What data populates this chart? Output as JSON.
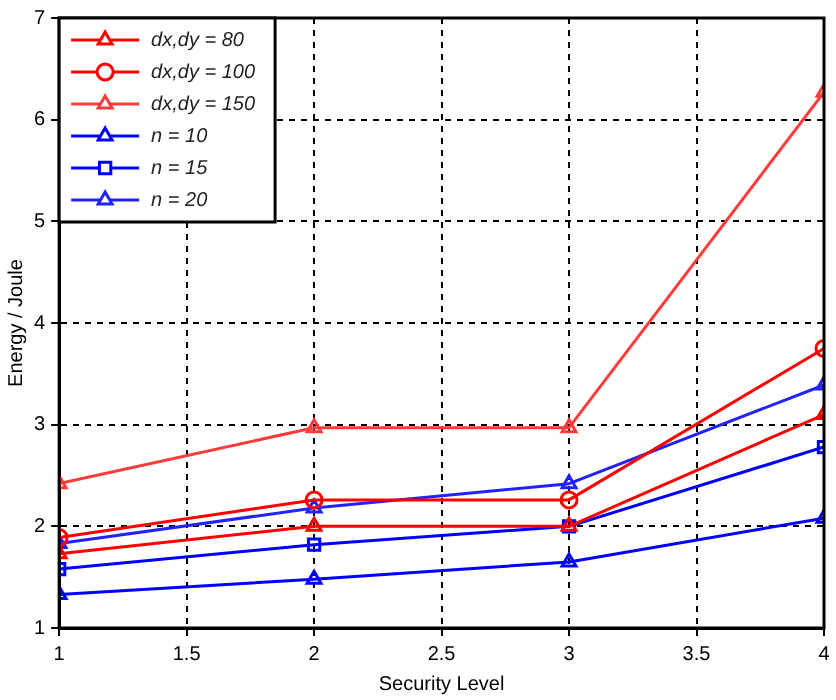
{
  "chart_data": {
    "type": "line",
    "xlabel": "Security Level",
    "ylabel": "Energy / Joule",
    "x": [
      1,
      2,
      3,
      4
    ],
    "xlim": [
      1,
      4
    ],
    "xticks": [
      1,
      1.5,
      2,
      2.5,
      3,
      3.5,
      4
    ],
    "ylim": [
      1,
      7
    ],
    "yticks": [
      1,
      2,
      3,
      4,
      5,
      6,
      7
    ],
    "grid": true,
    "legend": "top left",
    "line_style": "solid",
    "series": [
      {
        "name": "dx,dy = 80",
        "color": "#ff0000",
        "marker": "triangle",
        "values": [
          1.73,
          2.0,
          2.0,
          3.1
        ]
      },
      {
        "name": "dx,dy = 100",
        "color": "#ff0000",
        "marker": "circle",
        "values": [
          1.89,
          2.26,
          2.26,
          3.75
        ]
      },
      {
        "name": "dx,dy = 150",
        "color": "#ff3b3b",
        "marker": "triangle",
        "values": [
          2.42,
          2.97,
          2.97,
          6.27
        ]
      },
      {
        "name": "n = 10",
        "color": "#0000ff",
        "marker": "triangle",
        "values": [
          1.33,
          1.48,
          1.65,
          2.08
        ]
      },
      {
        "name": "n = 15",
        "color": "#0000ff",
        "marker": "square",
        "values": [
          1.58,
          1.82,
          2.0,
          2.78
        ]
      },
      {
        "name": "n = 20",
        "color": "#2222ff",
        "marker": "triangle",
        "values": [
          1.83,
          2.18,
          2.42,
          3.39
        ]
      }
    ]
  }
}
